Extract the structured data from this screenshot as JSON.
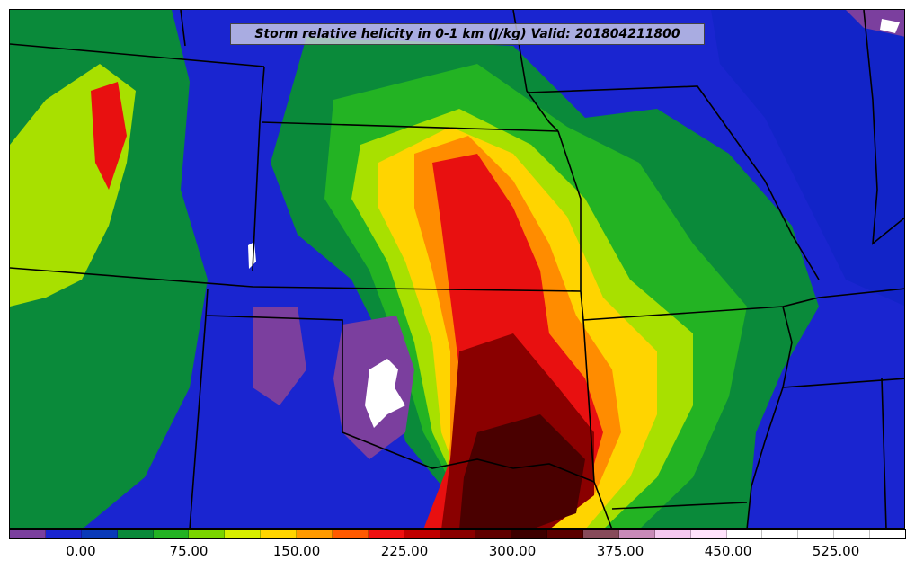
{
  "title": "Storm relative helicity in 0-1 km (J/kg) Valid: 201804211800",
  "colorbar": {
    "colors": [
      "#7b3f9e",
      "#1a25d0",
      "#0a3ab8",
      "#0a8a3a",
      "#23b323",
      "#7ad400",
      "#d7ee00",
      "#ffd400",
      "#ff9a00",
      "#ff5a00",
      "#f01010",
      "#c00000",
      "#8a0000",
      "#600000",
      "#3c0000",
      "#5b0000",
      "#874a5a",
      "#c88ab8",
      "#f5c8f0",
      "#ffe2fb",
      "#ffffff",
      "#ffffff",
      "#ffffff",
      "#ffffff",
      "#ffffff"
    ],
    "tick_labels": [
      "0.00",
      "75.00",
      "150.00",
      "225.00",
      "300.00",
      "375.00",
      "450.00",
      "525.00"
    ]
  },
  "palette": {
    "purple": "#7b3f9e",
    "blue": "#1a25d0",
    "dark_green": "#0a8a3a",
    "green": "#23b323",
    "lime": "#a8e000",
    "yellow": "#ffd400",
    "orange": "#ff8c00",
    "red": "#e81010",
    "dark_red": "#8a0000",
    "maroon": "#4a0000",
    "white": "#ffffff"
  }
}
